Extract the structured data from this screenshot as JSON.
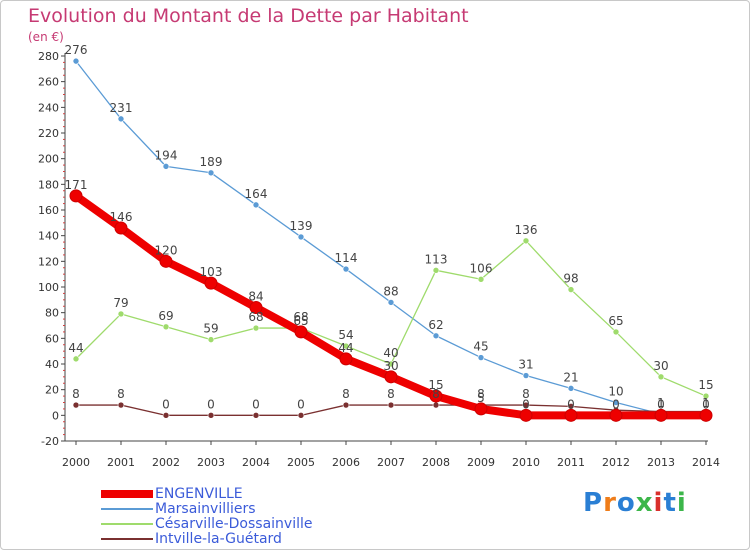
{
  "title": "Evolution du Montant de la Dette par Habitant",
  "unit_label": "(en €)",
  "logo": {
    "text": "Proxiti",
    "colors": [
      "#2a7fd4",
      "#ef7d1a",
      "#2a7fd4",
      "#3cb64a",
      "#d9302c",
      "#2a7fd4",
      "#3cb64a"
    ]
  },
  "chart_data": {
    "type": "line",
    "x": [
      "2000",
      "2001",
      "2002",
      "2003",
      "2004",
      "2005",
      "2006",
      "2007",
      "2008",
      "2009",
      "2010",
      "2011",
      "2012",
      "2013",
      "2014"
    ],
    "ylim": [
      -20,
      280
    ],
    "yticks": [
      "-20",
      "0",
      "20",
      "40",
      "60",
      "80",
      "100",
      "120",
      "140",
      "160",
      "180",
      "200",
      "220",
      "240",
      "260",
      "280"
    ],
    "grid": false,
    "legend_position": "bottom-left",
    "series": [
      {
        "name": "ENGENVILLE",
        "color": "#ee0000",
        "values": [
          171,
          146,
          120,
          103,
          84,
          65,
          44,
          30,
          15,
          5,
          0,
          0,
          0,
          0,
          0
        ],
        "labels": [
          "171",
          "146",
          "120",
          "103",
          "84",
          "65",
          "44",
          "30",
          "15",
          "5",
          "0",
          "0",
          "0",
          "0",
          "0"
        ]
      },
      {
        "name": "Marsainvilliers",
        "color": "#5b9bd5",
        "values": [
          276,
          231,
          194,
          189,
          164,
          139,
          114,
          88,
          62,
          45,
          31,
          21,
          10,
          1,
          1
        ],
        "labels": [
          "276",
          "231",
          "194",
          "189",
          "164",
          "139",
          "114",
          "88",
          "62",
          "45",
          "31",
          "21",
          "10",
          "1",
          "1"
        ]
      },
      {
        "name": "Césarville-Dossainville",
        "color": "#9fdb6c",
        "values": [
          44,
          79,
          69,
          59,
          68,
          68,
          54,
          40,
          113,
          106,
          136,
          98,
          65,
          30,
          15
        ],
        "labels": [
          "44",
          "79",
          "69",
          "59",
          "68",
          "68",
          "54",
          "40",
          "113",
          "106",
          "136",
          "98",
          "65",
          "30",
          "15"
        ]
      },
      {
        "name": "Intville-la-Guétard",
        "color": "#7a3030",
        "values": [
          8,
          8,
          0,
          0,
          0,
          0,
          8,
          8,
          8,
          8,
          8,
          7,
          4,
          3,
          3
        ],
        "labels": [
          "8",
          "8",
          "0",
          "0",
          "0",
          "0",
          "8",
          "8",
          "8",
          "8",
          "8",
          "",
          "",
          "",
          ""
        ]
      }
    ]
  }
}
